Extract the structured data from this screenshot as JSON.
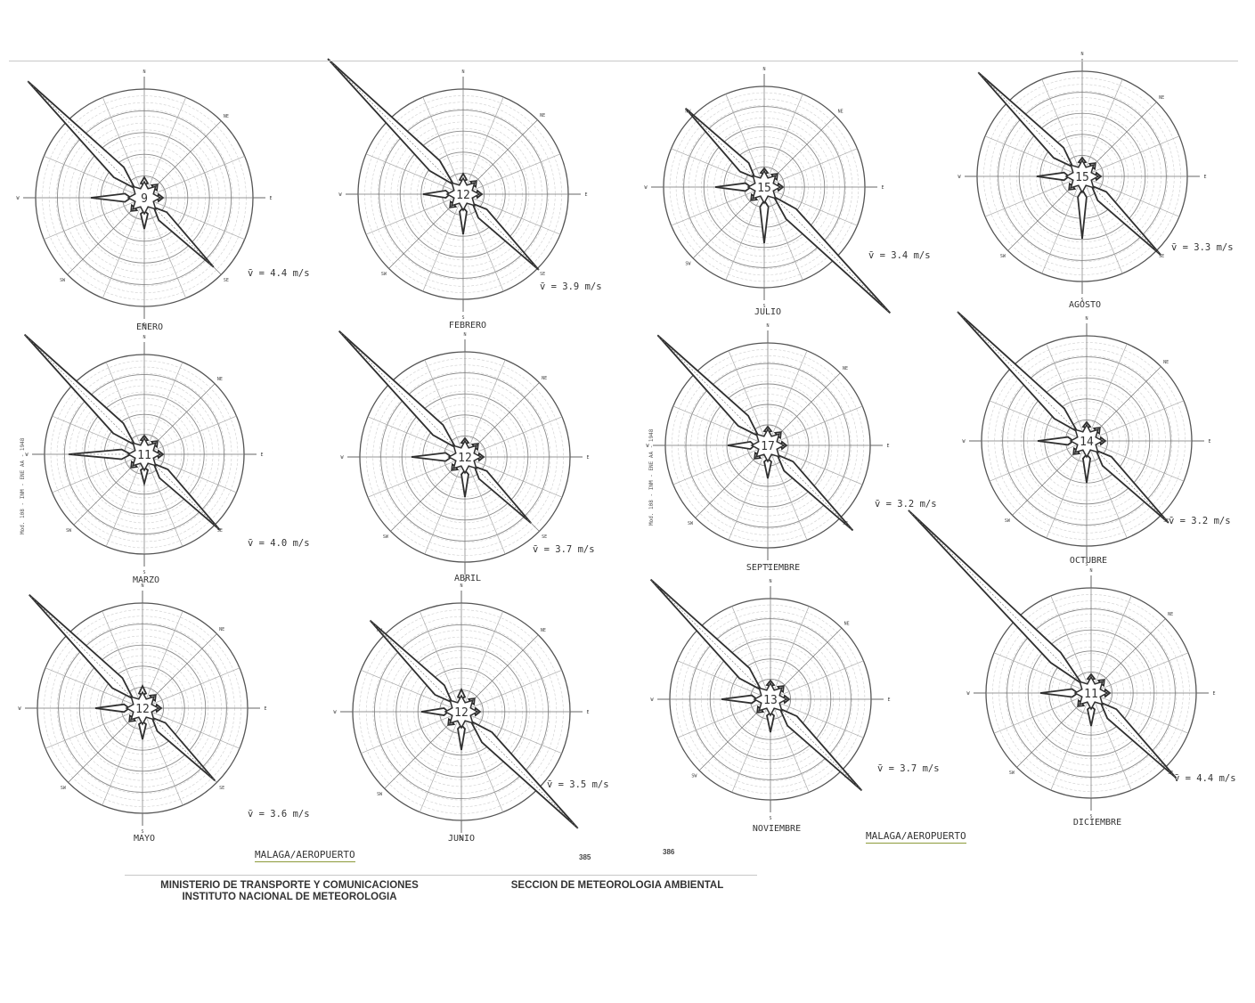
{
  "station_left": "MALAGA/AEROPUERTO",
  "station_right": "MALAGA/AEROPUERTO",
  "page_left": "385",
  "page_right": "386",
  "footer": {
    "ministry": "MINISTERIO DE TRANSPORTE Y COMUNICACIONES",
    "institute": "INSTITUTO NACIONAL DE METEOROLOGIA",
    "section": "SECCION DE METEOROLOGIA AMBIENTAL"
  },
  "side_label": "Mod. 108 - INM - ENE AA - 1948",
  "directions": [
    "N",
    "NE",
    "E",
    "SE",
    "S",
    "SW",
    "W",
    "NW"
  ],
  "chart_data": [
    {
      "type": "wind_rose",
      "title": "ENERO",
      "calm_pct": 9,
      "mean_speed_label": "v̄ = 4.4 m/s",
      "mean_speed": 4.4
    },
    {
      "type": "wind_rose",
      "title": "FEBRERO",
      "calm_pct": 12,
      "mean_speed_label": "v̄ = 3.9 m/s",
      "mean_speed": 3.9
    },
    {
      "type": "wind_rose",
      "title": "MARZO",
      "calm_pct": 11,
      "mean_speed_label": "v̄ = 4.0 m/s",
      "mean_speed": 4.0
    },
    {
      "type": "wind_rose",
      "title": "ABRIL",
      "calm_pct": 12,
      "mean_speed_label": "v̄ = 3.7 m/s",
      "mean_speed": 3.7
    },
    {
      "type": "wind_rose",
      "title": "MAYO",
      "calm_pct": 12,
      "mean_speed_label": "v̄ = 3.6 m/s",
      "mean_speed": 3.6
    },
    {
      "type": "wind_rose",
      "title": "JUNIO",
      "calm_pct": 12,
      "mean_speed_label": "v̄ = 3.5 m/s",
      "mean_speed": 3.5
    },
    {
      "type": "wind_rose",
      "title": "JULIO",
      "calm_pct": 15,
      "mean_speed_label": "v̄ = 3.4 m/s",
      "mean_speed": 3.4
    },
    {
      "type": "wind_rose",
      "title": "AGOSTO",
      "calm_pct": 15,
      "mean_speed_label": "v̄ = 3.3 m/s",
      "mean_speed": 3.3
    },
    {
      "type": "wind_rose",
      "title": "SEPTIEMBRE",
      "calm_pct": 17,
      "mean_speed_label": "v̄ = 3.2 m/s",
      "mean_speed": 3.2
    },
    {
      "type": "wind_rose",
      "title": "OCTUBRE",
      "calm_pct": 14,
      "mean_speed_label": "v̄ = 3.2 m/s",
      "mean_speed": 3.2
    },
    {
      "type": "wind_rose",
      "title": "NOVIEMBRE",
      "calm_pct": 13,
      "mean_speed_label": "v̄ = 3.7 m/s",
      "mean_speed": 3.7
    },
    {
      "type": "wind_rose",
      "title": "DICIEMBRE",
      "calm_pct": 11,
      "mean_speed_label": "v̄ = 4.4 m/s",
      "mean_speed": 4.4
    }
  ]
}
